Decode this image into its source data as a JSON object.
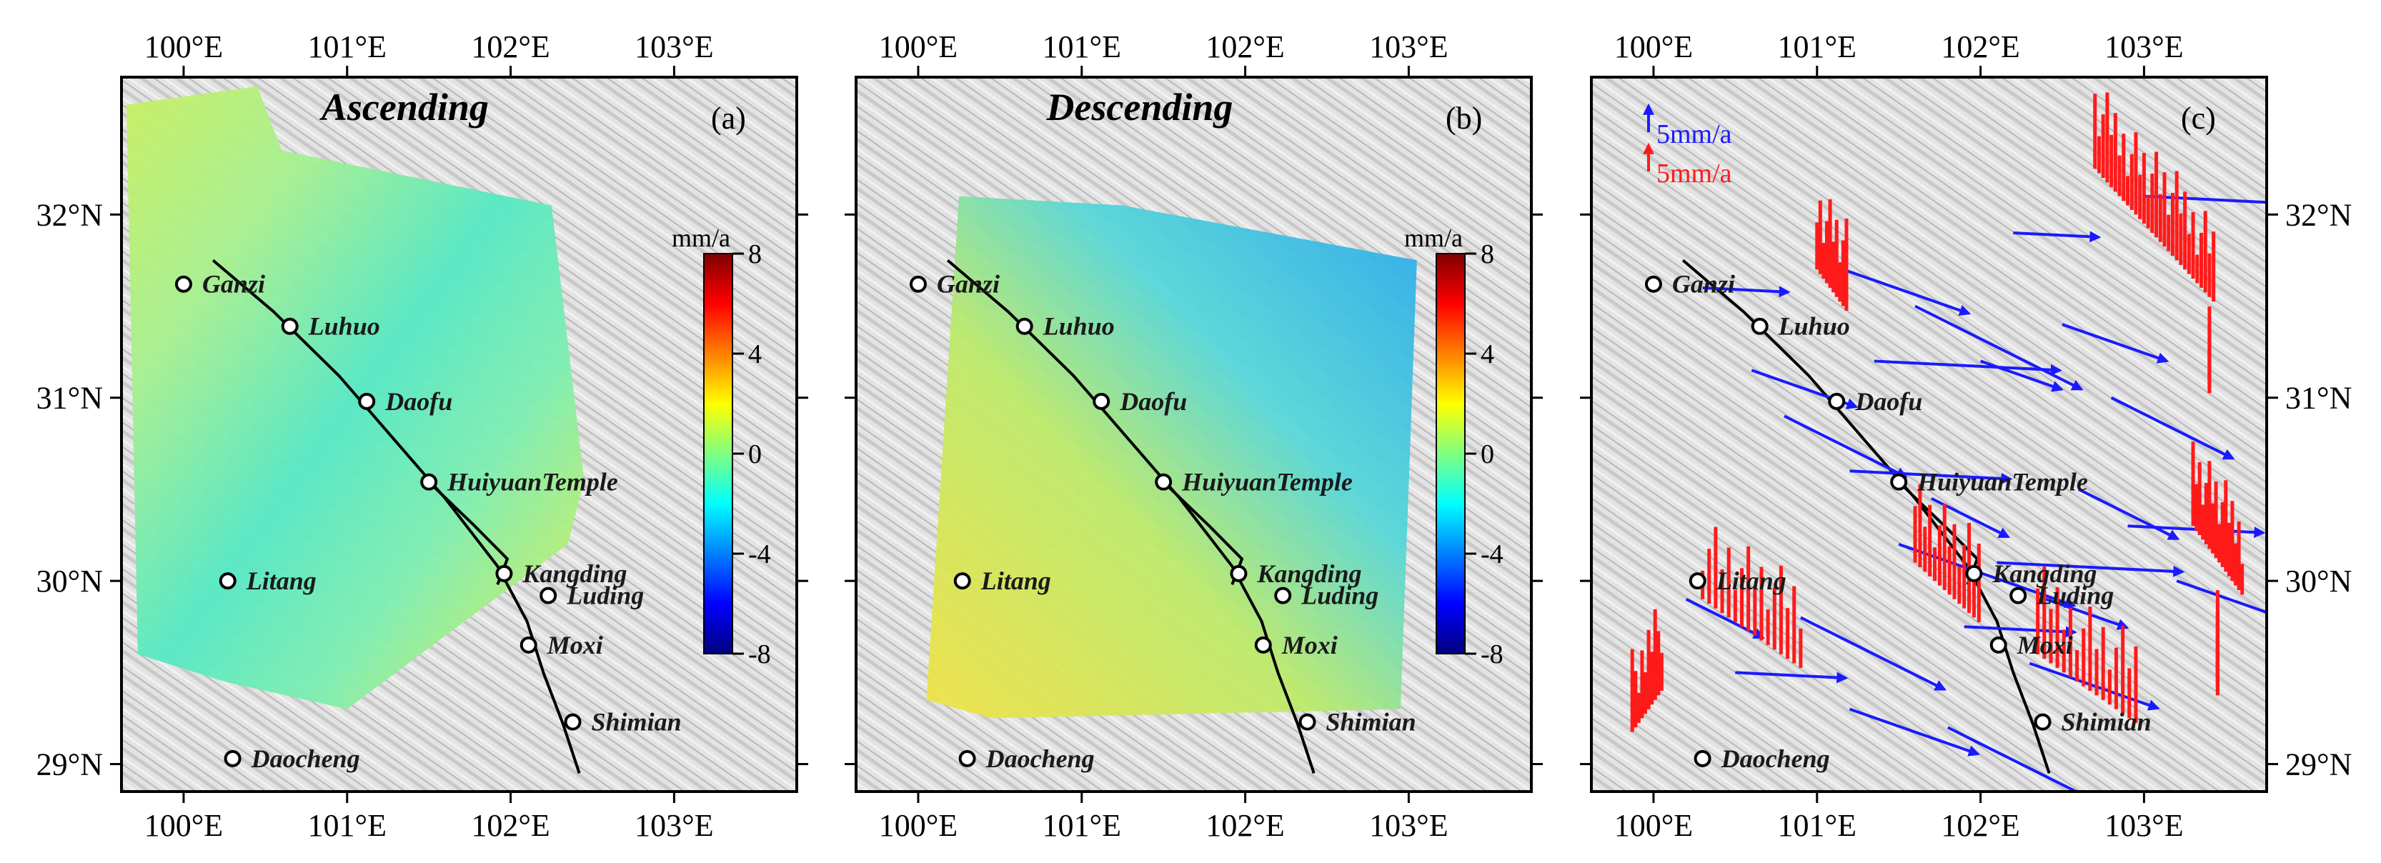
{
  "figure": {
    "lon_ticks": [
      "100°E",
      "101°E",
      "102°E",
      "103°E"
    ],
    "lat_ticks": [
      "32°N",
      "31°N",
      "30°N",
      "29°N"
    ],
    "lon_values": [
      100,
      101,
      102,
      103
    ],
    "lat_values": [
      32,
      31,
      30,
      29
    ],
    "extent": {
      "lon_min": 99.62,
      "lon_max": 103.75,
      "lat_min": 28.85,
      "lat_max": 32.75
    }
  },
  "panels": [
    {
      "id": "a",
      "label": "(a)",
      "title": "Ascending",
      "type": "insar"
    },
    {
      "id": "b",
      "label": "(b)",
      "title": "Descending",
      "type": "insar"
    },
    {
      "id": "c",
      "label": "(c)",
      "title": "",
      "type": "gnss"
    }
  ],
  "colorbar": {
    "unit": "mm/a",
    "ticks": [
      "8",
      "4",
      "0",
      "-4",
      "-8"
    ],
    "tick_values": [
      8,
      4,
      0,
      -4,
      -8
    ],
    "range": [
      -8,
      8
    ],
    "colormap": [
      "#00007f",
      "#0000ff",
      "#0080ff",
      "#00ffff",
      "#80ff80",
      "#ffff00",
      "#ff8000",
      "#ff0000",
      "#7f0000"
    ]
  },
  "legend": {
    "horizontal_label": "5mm/a",
    "horizontal_color": "#1a1aff",
    "vertical_label": "5mm/a",
    "vertical_color": "#ff1a1a"
  },
  "colors": {
    "terrain": "#d9d9d9",
    "fault": "#000000",
    "horizontal_vector": "#1a1aff",
    "vertical_vector": "#ff1a1a"
  },
  "towns": [
    {
      "name": "Ganzi",
      "lon": 100.0,
      "lat": 31.62
    },
    {
      "name": "Luhuo",
      "lon": 100.65,
      "lat": 31.39
    },
    {
      "name": "Daofu",
      "lon": 101.12,
      "lat": 30.98
    },
    {
      "name": "HuiyuanTemple",
      "lon": 101.5,
      "lat": 30.54
    },
    {
      "name": "Kangding",
      "lon": 101.96,
      "lat": 30.04
    },
    {
      "name": "Luding",
      "lon": 102.23,
      "lat": 29.92
    },
    {
      "name": "Moxi",
      "lon": 102.11,
      "lat": 29.65
    },
    {
      "name": "Litang",
      "lon": 100.27,
      "lat": 30.0
    },
    {
      "name": "Shimian",
      "lon": 102.38,
      "lat": 29.23
    },
    {
      "name": "Daocheng",
      "lon": 100.3,
      "lat": 29.03
    }
  ]
}
